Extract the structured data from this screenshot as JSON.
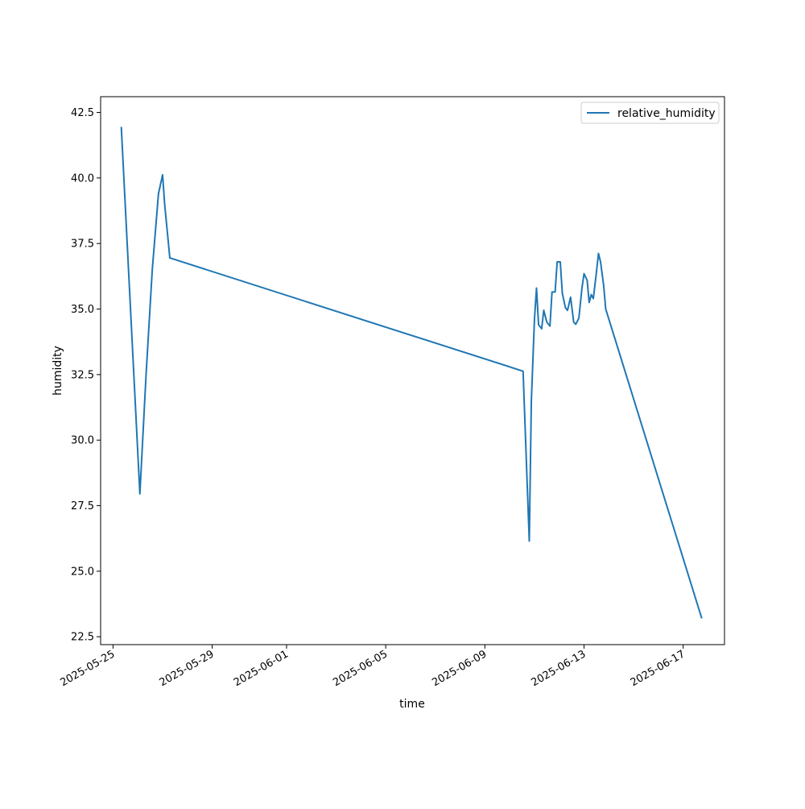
{
  "chart_data": {
    "type": "line",
    "title": "",
    "xlabel": "time",
    "ylabel": "humidity",
    "x_type": "date",
    "xlim": [
      "2025-05-24T12:00",
      "2025-06-18T16:00"
    ],
    "ylim": [
      22.2,
      43.1
    ],
    "x_ticks": [
      "2025-05-25",
      "2025-05-29",
      "2025-06-01",
      "2025-06-05",
      "2025-06-09",
      "2025-06-13",
      "2025-06-17"
    ],
    "y_ticks": [
      22.5,
      25.0,
      27.5,
      30.0,
      32.5,
      35.0,
      37.5,
      40.0,
      42.5
    ],
    "grid": false,
    "legend": {
      "position": "top-right",
      "entries": [
        "relative_humidity"
      ]
    },
    "series": [
      {
        "name": "relative_humidity",
        "color": "#1f77b4",
        "x": [
          "2025-05-25T08:00",
          "2025-05-26T02:00",
          "2025-05-26T08:00",
          "2025-05-26T14:00",
          "2025-05-26T20:00",
          "2025-05-27T00:00",
          "2025-05-27T02:00",
          "2025-05-27T07:00",
          "2025-06-10T13:00",
          "2025-06-10T19:00",
          "2025-06-10T21:00",
          "2025-06-11T00:00",
          "2025-06-11T02:00",
          "2025-06-11T04:00",
          "2025-06-11T07:00",
          "2025-06-11T09:00",
          "2025-06-11T12:00",
          "2025-06-11T15:00",
          "2025-06-11T17:00",
          "2025-06-11T20:00",
          "2025-06-11T22:00",
          "2025-06-12T01:00",
          "2025-06-12T03:00",
          "2025-06-12T06:00",
          "2025-06-12T08:00",
          "2025-06-12T11:00",
          "2025-06-12T14:00",
          "2025-06-12T16:00",
          "2025-06-12T19:00",
          "2025-06-12T22:00",
          "2025-06-13T00:00",
          "2025-06-13T03:00",
          "2025-06-13T05:00",
          "2025-06-13T07:00",
          "2025-06-13T09:00",
          "2025-06-13T12:00",
          "2025-06-13T14:00",
          "2025-06-13T16:00",
          "2025-06-13T19:00",
          "2025-06-13T21:00",
          "2025-06-17T18:00"
        ],
        "y": [
          41.95,
          27.95,
          32.5,
          36.5,
          39.4,
          40.12,
          39.0,
          36.95,
          32.63,
          26.15,
          31.5,
          34.6,
          35.8,
          34.4,
          34.25,
          34.95,
          34.5,
          34.35,
          35.65,
          35.65,
          36.8,
          36.8,
          35.6,
          35.05,
          34.95,
          35.45,
          34.5,
          34.42,
          34.65,
          35.8,
          36.35,
          36.1,
          35.25,
          35.55,
          35.4,
          36.4,
          37.12,
          36.8,
          35.9,
          35.0,
          23.2
        ]
      }
    ]
  }
}
